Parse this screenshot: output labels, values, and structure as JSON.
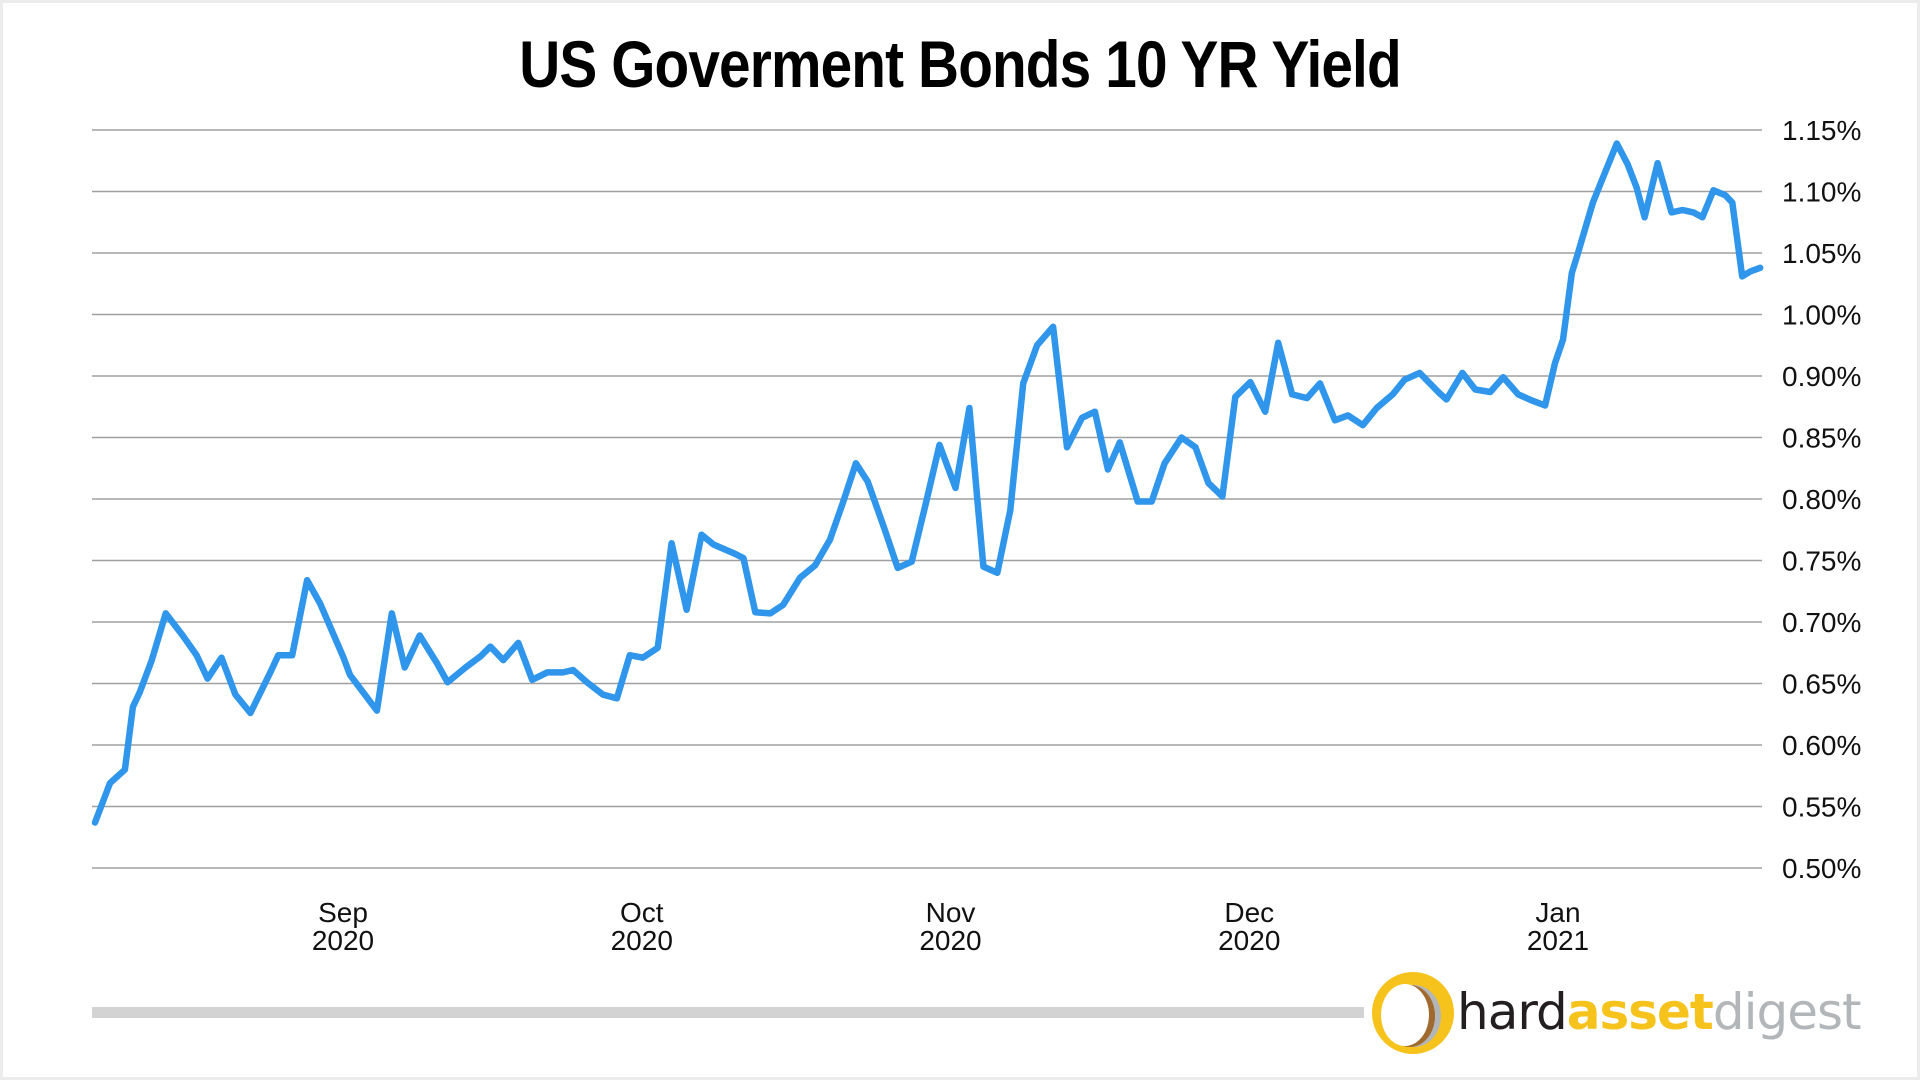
{
  "chart_data": {
    "type": "line",
    "title": "US Goverment Bonds 10 YR Yield",
    "xlabel": "",
    "ylabel": "",
    "y_axis_position": "right",
    "grid": true,
    "legend": null,
    "series_color": "#2f96ec",
    "y_ticks": [
      {
        "value": 0.5,
        "label": "0.50%"
      },
      {
        "value": 0.55,
        "label": "0.55%"
      },
      {
        "value": 0.6,
        "label": "0.60%"
      },
      {
        "value": 0.65,
        "label": "0.65%"
      },
      {
        "value": 0.7,
        "label": "0.70%"
      },
      {
        "value": 0.75,
        "label": "0.75%"
      },
      {
        "value": 0.8,
        "label": "0.80%"
      },
      {
        "value": 0.85,
        "label": "0.85%"
      },
      {
        "value": 0.9,
        "label": "0.90%"
      },
      {
        "value": 1.0,
        "label": "1.00%"
      },
      {
        "value": 1.05,
        "label": "1.05%"
      },
      {
        "value": 1.1,
        "label": "1.10%"
      },
      {
        "value": 1.15,
        "label": "1.15%"
      }
    ],
    "ylim": [
      0.5,
      1.15
    ],
    "x_ticks": [
      {
        "day": 31,
        "month": "Sep",
        "year": "2020"
      },
      {
        "day": 61,
        "month": "Oct",
        "year": "2020"
      },
      {
        "day": 92,
        "month": "Nov",
        "year": "2020"
      },
      {
        "day": 122,
        "month": "Dec",
        "year": "2020"
      },
      {
        "day": 153,
        "month": "Jan",
        "year": "2021"
      }
    ],
    "x_unit": "days since Aug 1 2020",
    "xlim": [
      3,
      176
    ],
    "series": [
      {
        "name": "10 YR Yield (%)",
        "x": [
          6.1,
          7.6,
          9.1,
          9.9,
          10.6,
          11.8,
          13.2,
          14.9,
          16.3,
          17.4,
          18.8,
          20.2,
          21.7,
          23.7,
          24.5,
          25.9,
          27.4,
          28.7,
          29.5,
          31.0,
          31.7,
          34.4,
          35.9,
          37.2,
          38.7,
          40.4,
          41.5,
          43.3,
          44.8,
          45.8,
          47.1,
          48.6,
          50.0,
          51.5,
          53.1,
          54.1,
          55.5,
          57.1,
          58.5,
          59.8,
          61.1,
          62.6,
          64.0,
          65.5,
          67.0,
          68.2,
          70.2,
          71.2,
          72.4,
          73.9,
          75.2,
          76.9,
          78.4,
          79.9,
          81.2,
          82.5,
          83.7,
          85.4,
          86.7,
          88.1,
          89.6,
          90.9,
          92.5,
          93.9,
          94.7,
          95.3,
          96.7,
          98.0,
          99.3,
          100.7,
          102.3,
          103.7,
          105.2,
          106.5,
          107.8,
          109.0,
          110.8,
          112.2,
          113.5,
          115.2,
          116.6,
          117.9,
          119.3,
          120.6,
          122.1,
          123.6,
          124.9,
          126.3,
          127.8,
          129.1,
          130.6,
          131.9,
          133.4,
          134.8,
          136.4,
          137.6,
          139.1,
          141.1,
          141.8,
          143.4,
          144.7,
          146.2,
          147.5,
          149.0,
          150.4,
          151.7,
          152.7,
          153.5,
          154.4,
          154.9,
          155.7,
          156.5,
          157.4,
          158.9,
          160.0,
          160.9,
          161.7,
          163.0,
          164.4,
          165.5,
          166.6,
          167.5,
          168.6,
          169.8,
          170.5,
          171.5,
          172.3,
          173.3
        ],
        "values": [
          0.537,
          0.569,
          0.58,
          0.631,
          0.643,
          0.669,
          0.707,
          0.689,
          0.673,
          0.654,
          0.671,
          0.641,
          0.626,
          0.659,
          0.673,
          0.673,
          0.734,
          0.715,
          0.7,
          0.672,
          0.657,
          0.628,
          0.707,
          0.663,
          0.689,
          0.667,
          0.651,
          0.663,
          0.672,
          0.68,
          0.669,
          0.683,
          0.653,
          0.659,
          0.659,
          0.661,
          0.651,
          0.641,
          0.638,
          0.673,
          0.671,
          0.679,
          0.764,
          0.71,
          0.771,
          0.763,
          0.756,
          0.752,
          0.708,
          0.707,
          0.714,
          0.736,
          0.746,
          0.767,
          0.797,
          0.829,
          0.814,
          0.775,
          0.744,
          0.749,
          0.799,
          0.844,
          0.809,
          0.874,
          0.799,
          0.745,
          0.74,
          0.791,
          0.894,
          0.95,
          0.98,
          0.842,
          0.866,
          0.871,
          0.824,
          0.846,
          0.798,
          0.798,
          0.829,
          0.85,
          0.842,
          0.813,
          0.802,
          0.883,
          0.895,
          0.871,
          0.954,
          0.885,
          0.882,
          0.894,
          0.864,
          0.868,
          0.86,
          0.874,
          0.885,
          0.897,
          0.905,
          0.886,
          0.881,
          0.905,
          0.889,
          0.887,
          0.899,
          0.885,
          0.88,
          0.876,
          0.921,
          0.959,
          1.034,
          1.047,
          1.069,
          1.091,
          1.109,
          1.139,
          1.122,
          1.103,
          1.079,
          1.123,
          1.083,
          1.085,
          1.083,
          1.079,
          1.101,
          1.097,
          1.091,
          1.031,
          1.035,
          1.038
        ]
      }
    ]
  },
  "branding": {
    "logo_word_1": "hard",
    "logo_word_2": "asset",
    "logo_word_3": "digest",
    "colors": {
      "yellow": "#f6c21c",
      "brown": "#a0692e",
      "gray": "#b3b6b9",
      "dark": "#231f20"
    },
    "logo_icon": "hardassetdigest-ring-icon"
  }
}
